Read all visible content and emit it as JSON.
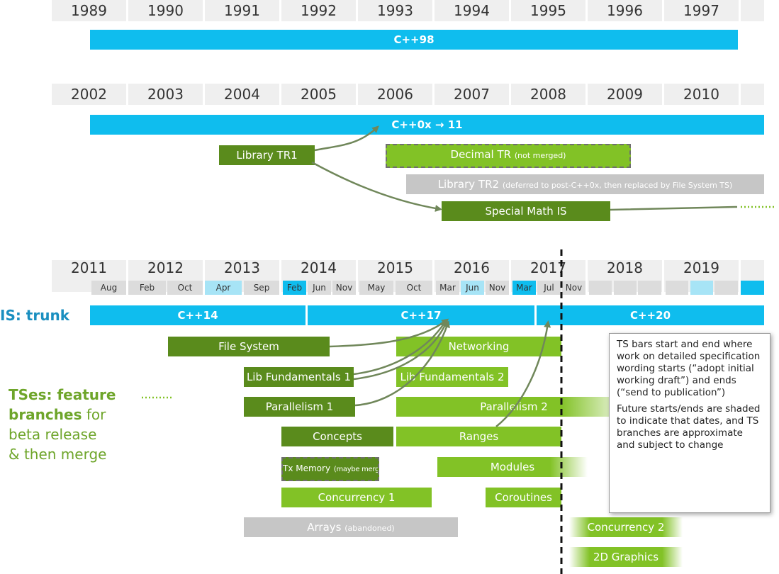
{
  "row1": {
    "years": [
      "1989",
      "1990",
      "1991",
      "1992",
      "1993",
      "1994",
      "1995",
      "1996",
      "1997"
    ],
    "trunk": "C++98"
  },
  "row2": {
    "years": [
      "2002",
      "2003",
      "2004",
      "2005",
      "2006",
      "2007",
      "2008",
      "2009",
      "2010"
    ],
    "trunk": "C++0x → 11",
    "library_tr1": "Library TR1",
    "decimal_tr": "Decimal TR",
    "decimal_tr_note": "(not merged)",
    "library_tr2": "Library TR2",
    "library_tr2_note": "(deferred to post-C++0x, then replaced by File System TS)",
    "special_math": "Special Math IS"
  },
  "row3": {
    "years": [
      "2011",
      "2012",
      "2013",
      "2014",
      "2015",
      "2016",
      "2017",
      "2018",
      "2019"
    ],
    "months": [
      "Aug",
      "Feb",
      "Oct",
      "Apr",
      "Sep",
      "Feb",
      "Jun",
      "Nov",
      "May",
      "Oct",
      "Mar",
      "Jun",
      "Nov",
      "Mar",
      "Jul",
      "Nov"
    ],
    "is_trunk_label": "IS: trunk",
    "cpp14": "C++14",
    "cpp17": "C++17",
    "cpp20": "C++20"
  },
  "tses_label": {
    "bold": "TSes: feature branches",
    "rest1": " for",
    "line3": "beta release",
    "line4": "& then merge"
  },
  "ts_bars": {
    "file_system": "File System",
    "networking": "Networking",
    "lib_fund1": "Lib Fundamentals 1",
    "lib_fund2": "Lib Fundamentals 2",
    "parallelism1": "Parallelism 1",
    "parallelism2": "Parallelism 2",
    "concepts": "Concepts",
    "ranges": "Ranges",
    "tx_memory": "Tx Memory",
    "tx_memory_note": "(maybe merge)",
    "modules": "Modules",
    "concurrency1": "Concurrency 1",
    "coroutines": "Coroutines",
    "arrays": "Arrays",
    "arrays_note": "(abandoned)",
    "concurrency2": "Concurrency 2",
    "graphics2d": "2D Graphics"
  },
  "note": {
    "p1": "TS bars start and end where work on detailed specification wording starts (“adopt initial working draft”) and ends (“send to publication”)",
    "p2": "Future starts/ends are shaded to indicate that dates, and TS branches are approximate and subject to change"
  },
  "colors": {
    "trunk": "#0fbdee",
    "dark_green": "#5a8b1c",
    "light_green": "#82c226",
    "gray": "#c6c6c6",
    "label_blue": "#1a8fc0",
    "label_green": "#6ea52a"
  }
}
